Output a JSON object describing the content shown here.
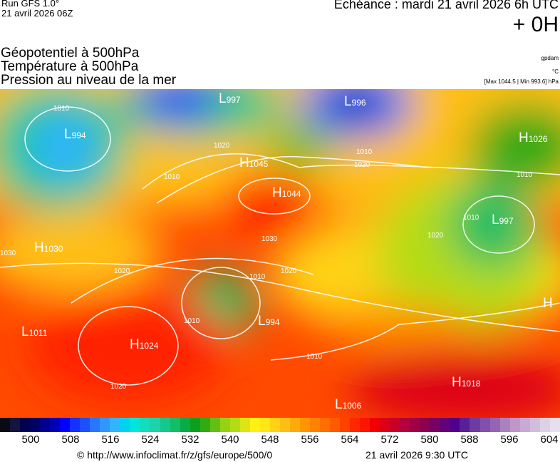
{
  "header": {
    "run": "Run GFS 1.0°",
    "run_date": "21 avril 2026 06Z",
    "valid": "Echéance : mardi 21 avril 2026 6h UTC",
    "lead": "+ 0H",
    "titles": [
      "Géopotentiel à 500hPa",
      "Température à 500hPa",
      "Pression au niveau de la mer"
    ],
    "units": [
      "gpdam",
      "°C",
      "[Max 1044.5 | Min 993.6] hPa"
    ]
  },
  "map": {
    "centers": [
      {
        "type": "L",
        "value": "994"
      },
      {
        "type": "L",
        "value": "997"
      },
      {
        "type": "L",
        "value": "996"
      },
      {
        "type": "H",
        "value": "1026"
      },
      {
        "type": "H",
        "value": "1045"
      },
      {
        "type": "H",
        "value": "1044"
      },
      {
        "type": "L",
        "value": "997"
      },
      {
        "type": "H",
        "value": "1030"
      },
      {
        "type": "L",
        "value": "994"
      },
      {
        "type": "L",
        "value": "1011"
      },
      {
        "type": "H",
        "value": "1024"
      },
      {
        "type": "H",
        "value": "1018"
      },
      {
        "type": "L",
        "value": "1006"
      },
      {
        "type": "H",
        "value": ""
      }
    ],
    "isobar_labels": [
      "1010",
      "1010",
      "1020",
      "1010",
      "1020",
      "1020",
      "1030",
      "1030",
      "1010",
      "1020",
      "1010",
      "1010",
      "1020",
      "1010",
      "1010",
      "1020"
    ]
  },
  "colorbar": {
    "colors": [
      "#0a0a14",
      "#14143c",
      "#000050",
      "#000064",
      "#00008c",
      "#0000b4",
      "#0000ff",
      "#1432ff",
      "#1e50ff",
      "#2878ff",
      "#3296ff",
      "#32b4ff",
      "#00d2f0",
      "#00e6dc",
      "#14dcbe",
      "#1ed2aa",
      "#14c88c",
      "#14be64",
      "#0aaa46",
      "#0aa01e",
      "#32aa14",
      "#64be14",
      "#96d214",
      "#b4dc14",
      "#dce614",
      "#fff014",
      "#ffe614",
      "#ffd214",
      "#ffbe14",
      "#ffaa0a",
      "#ff9600",
      "#ff8200",
      "#ff6e00",
      "#ff5a00",
      "#ff4100",
      "#ff2800",
      "#ff1400",
      "#f00000",
      "#dc0014",
      "#c80028",
      "#b4003c",
      "#a00046",
      "#8c0050",
      "#780064",
      "#640078",
      "#50008c",
      "#5a1e96",
      "#6e3ca0",
      "#8250aa",
      "#9664b4",
      "#aa82be",
      "#be96c8",
      "#c8aad2",
      "#d2bedc",
      "#dcd2e6",
      "#e6e0ee"
    ],
    "labels": [
      "500",
      "508",
      "516",
      "524",
      "532",
      "540",
      "548",
      "556",
      "564",
      "572",
      "580",
      "588",
      "596",
      "604"
    ]
  },
  "footer": {
    "url": "© http://www.infoclimat.fr/z/gfs/europe/500/0",
    "time": "21 avril 2026  9:30 UTC"
  }
}
